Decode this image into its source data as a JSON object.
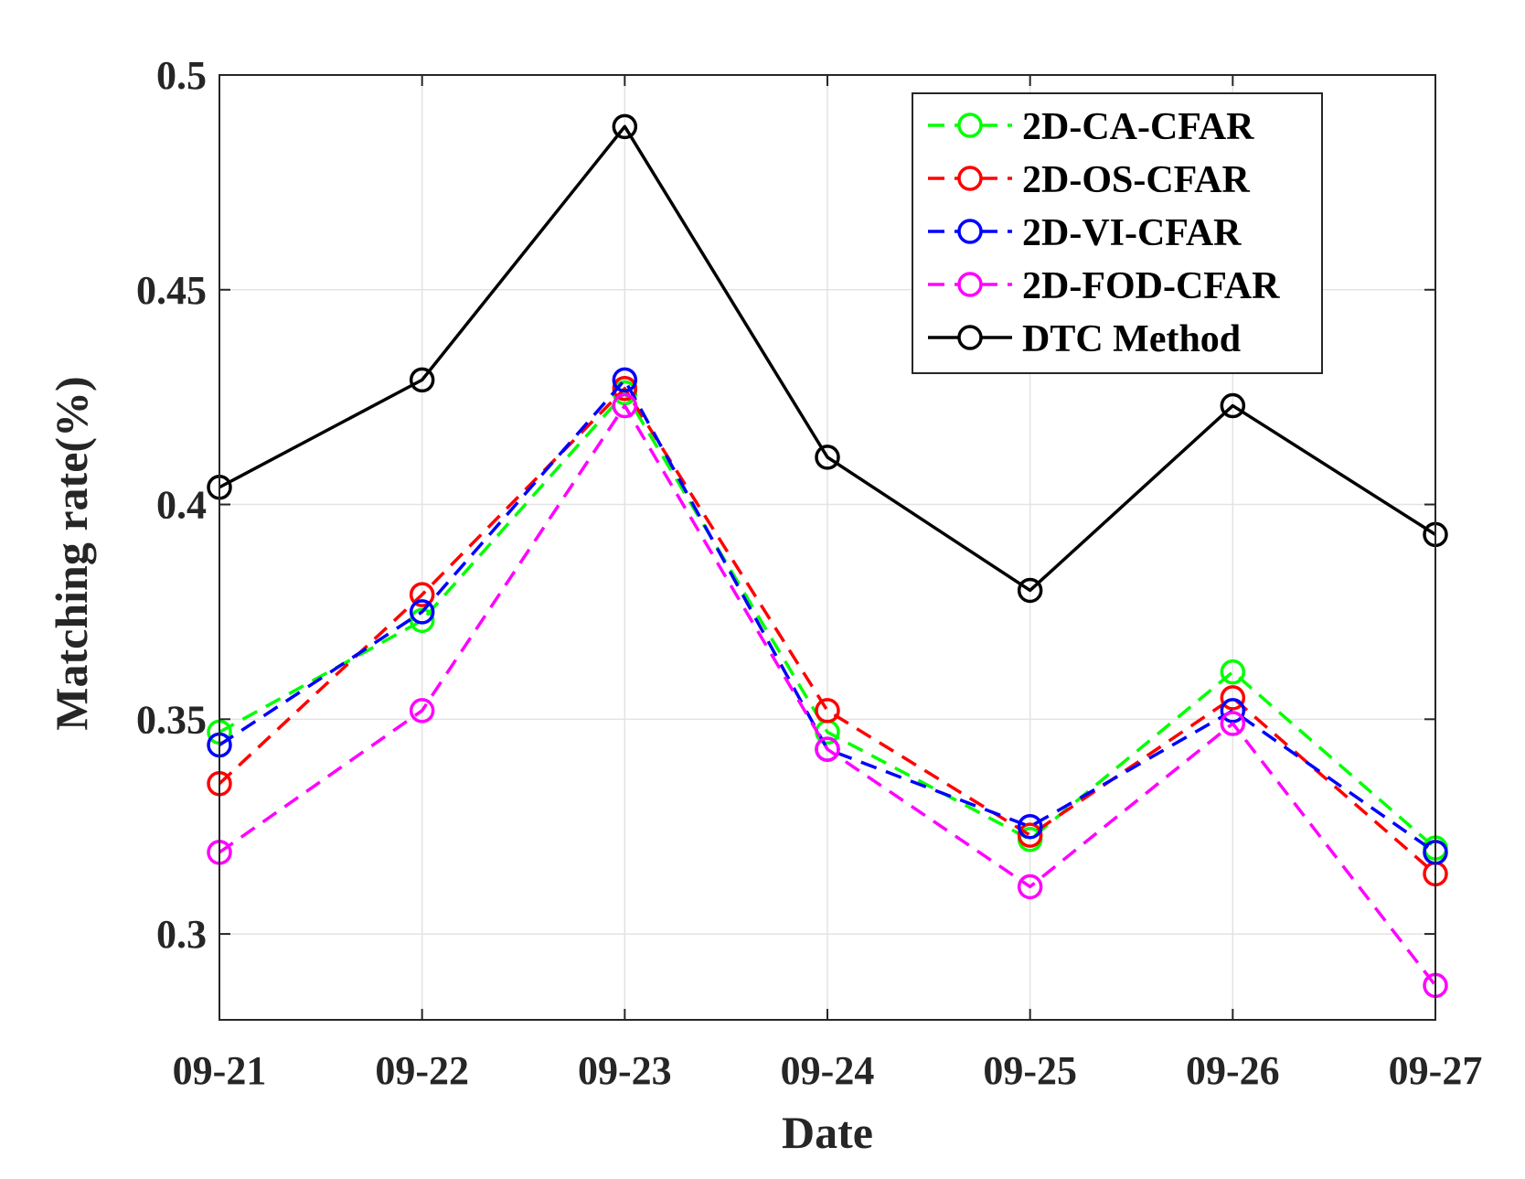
{
  "chart_data": {
    "type": "line",
    "title": "",
    "xlabel": "Date",
    "ylabel": "Matching rate(%)",
    "categories": [
      "09-21",
      "09-22",
      "09-23",
      "09-24",
      "09-25",
      "09-26",
      "09-27"
    ],
    "ylim": [
      0.28,
      0.5
    ],
    "yticks": [
      0.3,
      0.35,
      0.4,
      0.45,
      0.5
    ],
    "ytick_labels": [
      "0.3",
      "0.35",
      "0.4",
      "0.45",
      "0.5"
    ],
    "grid": true,
    "legend_position": "top-right",
    "series": [
      {
        "name": "2D-CA-CFAR",
        "color": "#00ff00",
        "dash": true,
        "marker": "circle",
        "values": [
          0.347,
          0.373,
          0.426,
          0.347,
          0.322,
          0.361,
          0.32
        ]
      },
      {
        "name": "2D-OS-CFAR",
        "color": "#ff0000",
        "dash": true,
        "marker": "circle",
        "values": [
          0.335,
          0.379,
          0.427,
          0.352,
          0.323,
          0.355,
          0.314
        ]
      },
      {
        "name": "2D-VI-CFAR",
        "color": "#0000ff",
        "dash": true,
        "marker": "circle",
        "values": [
          0.344,
          0.375,
          0.429,
          0.343,
          0.325,
          0.352,
          0.319
        ]
      },
      {
        "name": "2D-FOD-CFAR",
        "color": "#ff00ff",
        "dash": true,
        "marker": "circle",
        "values": [
          0.319,
          0.352,
          0.423,
          0.343,
          0.311,
          0.349,
          0.288
        ]
      },
      {
        "name": "DTC Method",
        "color": "#000000",
        "dash": false,
        "marker": "circle",
        "values": [
          0.404,
          0.429,
          0.488,
          0.411,
          0.38,
          0.423,
          0.393
        ]
      }
    ]
  }
}
